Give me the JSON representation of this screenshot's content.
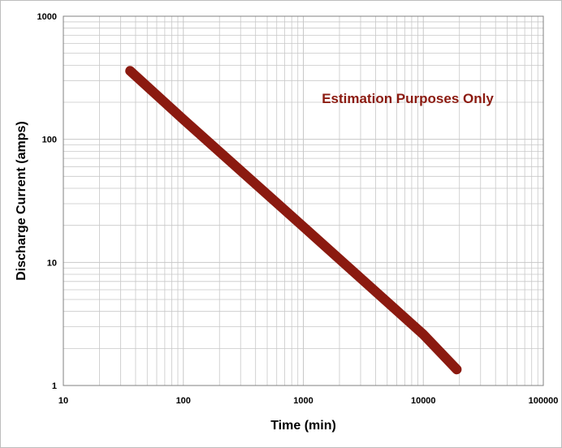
{
  "chart_data": {
    "type": "line",
    "title": "",
    "xlabel": "Time (min)",
    "ylabel": "Discharge Current (amps)",
    "x_scale": "log",
    "y_scale": "log",
    "xlim": [
      10,
      100000
    ],
    "ylim": [
      1,
      1000
    ],
    "x_ticks": [
      "10",
      "100",
      "1000",
      "10000",
      "100000"
    ],
    "y_ticks": [
      "1",
      "10",
      "100",
      "1000"
    ],
    "grid": true,
    "legend": "none",
    "annotation": "Estimation Purposes Only",
    "series": [
      {
        "color": "#8b1a10",
        "x": [
          36,
          100,
          1000,
          10000,
          19000
        ],
        "y": [
          360,
          145,
          19.5,
          2.6,
          1.35
        ]
      }
    ],
    "colors": {
      "series": "#8b1a10",
      "annotation": "#8b1a10",
      "grid": "#c8c8c8",
      "axis": "#808080"
    }
  }
}
